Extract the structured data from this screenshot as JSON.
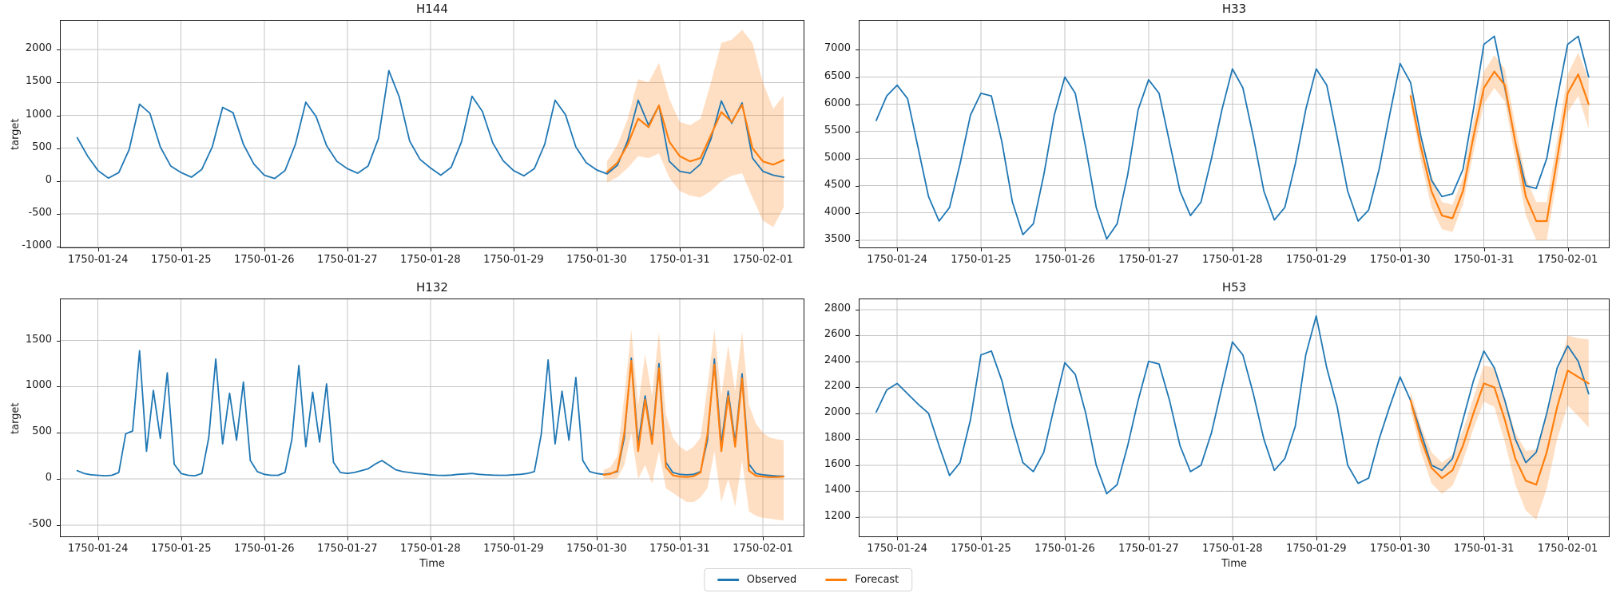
{
  "style": {
    "observed_color": "#1f77b4",
    "forecast_color": "#ff7f0e",
    "band_fill": "rgba(255,127,14,0.25)",
    "grid_color": "#c6c6c6",
    "spine_color": "#1a1a1a",
    "text_color": "#1a1a1a",
    "background": "#ffffff"
  },
  "legend": {
    "items": [
      {
        "label": "Observed",
        "color": "#1f77b4"
      },
      {
        "label": "Forecast",
        "color": "#ff7f0e"
      }
    ]
  },
  "time_axis": {
    "label": "Time",
    "xlim": [
      -11,
      204
    ],
    "tick_hours": [
      0,
      24,
      48,
      72,
      96,
      120,
      144,
      168,
      192
    ],
    "tick_labels": [
      "1750-01-24",
      "1750-01-25",
      "1750-01-26",
      "1750-01-27",
      "1750-01-28",
      "1750-01-29",
      "1750-01-30",
      "1750-01-31",
      "1750-02-01"
    ]
  },
  "chart_data": [
    {
      "type": "line",
      "title": "H144",
      "ylabel": "target",
      "xlabel": "",
      "grid": true,
      "legend_position": "figure-bottom",
      "ylim": [
        -1020,
        2450
      ],
      "y_ticks": [
        -1000,
        -500,
        0,
        500,
        1000,
        1500,
        2000
      ],
      "observed": {
        "t0": -6,
        "step": 3,
        "values": [
          660,
          380,
          160,
          45,
          130,
          480,
          1170,
          1030,
          520,
          230,
          130,
          60,
          180,
          520,
          1120,
          1040,
          560,
          260,
          90,
          40,
          160,
          560,
          1200,
          980,
          540,
          300,
          190,
          120,
          230,
          650,
          1680,
          1280,
          610,
          330,
          200,
          90,
          210,
          600,
          1290,
          1060,
          580,
          310,
          160,
          80,
          190,
          560,
          1230,
          1010,
          520,
          280,
          170,
          110,
          240,
          620,
          1230,
          850,
          1150,
          300,
          150,
          120,
          260,
          640,
          1220,
          880,
          1190,
          350,
          150,
          90,
          60
        ]
      },
      "forecast": {
        "t0": 147,
        "step": 3,
        "values": [
          140,
          280,
          560,
          950,
          820,
          1150,
          600,
          380,
          300,
          350,
          700,
          1050,
          900,
          1160,
          500,
          300,
          250,
          320
        ]
      },
      "band": {
        "t0": 147,
        "step": 3,
        "lower": [
          -20,
          60,
          200,
          380,
          350,
          420,
          50,
          -150,
          -220,
          -250,
          -150,
          0,
          80,
          120,
          -250,
          -600,
          -700,
          -400
        ],
        "upper": [
          300,
          550,
          950,
          1550,
          1500,
          1800,
          1250,
          900,
          850,
          950,
          1500,
          2100,
          2150,
          2300,
          2100,
          1500,
          1100,
          1300
        ]
      }
    },
    {
      "type": "line",
      "title": "H33",
      "ylabel": "",
      "xlabel": "",
      "grid": true,
      "ylim": [
        3350,
        7550
      ],
      "y_ticks": [
        3500,
        4000,
        4500,
        5000,
        5500,
        6000,
        6500,
        7000
      ],
      "observed": {
        "t0": -6,
        "step": 3,
        "values": [
          5700,
          6150,
          6350,
          6100,
          5200,
          4300,
          3850,
          4100,
          4900,
          5800,
          6200,
          6150,
          5300,
          4200,
          3600,
          3800,
          4700,
          5800,
          6500,
          6200,
          5200,
          4100,
          3520,
          3800,
          4700,
          5900,
          6450,
          6200,
          5300,
          4400,
          3950,
          4200,
          5000,
          5900,
          6650,
          6300,
          5400,
          4400,
          3870,
          4100,
          4900,
          5900,
          6650,
          6350,
          5400,
          4400,
          3850,
          4050,
          4800,
          5800,
          6750,
          6400,
          5400,
          4600,
          4300,
          4350,
          4800,
          5900,
          7100,
          7250,
          6300,
          5300,
          4500,
          4450,
          5000,
          6100,
          7100,
          7250,
          6500
        ]
      },
      "forecast": {
        "t0": 147,
        "step": 3,
        "values": [
          6150,
          5200,
          4400,
          3950,
          3900,
          4400,
          5400,
          6300,
          6600,
          6350,
          5300,
          4300,
          3850,
          3850,
          5000,
          6200,
          6550,
          6000
        ]
      },
      "band": {
        "t0": 147,
        "step": 3,
        "lower": [
          6000,
          4950,
          4100,
          3700,
          3650,
          4150,
          5100,
          6000,
          6300,
          6050,
          5000,
          3950,
          3500,
          3500,
          4650,
          5850,
          6150,
          5550
        ],
        "upper": [
          6300,
          5450,
          4700,
          4200,
          4150,
          4650,
          5700,
          6600,
          6900,
          6650,
          5600,
          4650,
          4200,
          4200,
          5350,
          6550,
          6950,
          6450
        ]
      }
    },
    {
      "type": "line",
      "title": "H132",
      "ylabel": "target",
      "xlabel": "Time",
      "grid": true,
      "ylim": [
        -630,
        1955
      ],
      "y_ticks": [
        -500,
        0,
        500,
        1000,
        1500
      ],
      "observed": {
        "t0": -6,
        "step": 2,
        "values": [
          90,
          60,
          45,
          40,
          35,
          40,
          70,
          490,
          520,
          1390,
          300,
          960,
          440,
          1150,
          160,
          60,
          40,
          35,
          60,
          450,
          1300,
          380,
          930,
          420,
          1050,
          200,
          80,
          50,
          40,
          40,
          70,
          430,
          1230,
          350,
          940,
          400,
          1030,
          180,
          70,
          60,
          70,
          90,
          110,
          160,
          200,
          150,
          100,
          80,
          70,
          60,
          55,
          45,
          40,
          38,
          42,
          50,
          55,
          60,
          50,
          45,
          42,
          40,
          40,
          45,
          50,
          60,
          80,
          480,
          1290,
          380,
          950,
          420,
          1100,
          200,
          80,
          60,
          50,
          60,
          80,
          450,
          1310,
          380,
          900,
          420,
          1250,
          180,
          70,
          50,
          45,
          50,
          80,
          420,
          1300,
          380,
          950,
          400,
          1140,
          160,
          60,
          45,
          38,
          32,
          30
        ]
      },
      "forecast": {
        "t0": 146,
        "step": 2,
        "values": [
          45,
          55,
          90,
          500,
          1280,
          300,
          860,
          380,
          1200,
          130,
          40,
          25,
          22,
          30,
          70,
          480,
          1240,
          300,
          900,
          350,
          1090,
          90,
          35,
          25,
          20,
          20,
          25
        ]
      },
      "band": {
        "t0": 146,
        "step": 2,
        "lower": [
          0,
          0,
          10,
          150,
          500,
          0,
          150,
          -50,
          300,
          -100,
          -150,
          -200,
          -250,
          -250,
          -200,
          -100,
          300,
          -250,
          0,
          -300,
          200,
          -350,
          -400,
          -420,
          -430,
          -440,
          -450
        ],
        "upper": [
          100,
          130,
          250,
          900,
          1620,
          800,
          1350,
          900,
          1600,
          700,
          450,
          350,
          300,
          350,
          450,
          1000,
          1620,
          900,
          1450,
          950,
          1600,
          800,
          600,
          500,
          450,
          430,
          420
        ]
      }
    },
    {
      "type": "line",
      "title": "H53",
      "ylabel": "",
      "xlabel": "Time",
      "grid": true,
      "ylim": [
        1045,
        2885
      ],
      "y_ticks": [
        1200,
        1400,
        1600,
        1800,
        2000,
        2200,
        2400,
        2600,
        2800
      ],
      "observed": {
        "t0": -6,
        "step": 3,
        "values": [
          2010,
          2180,
          2230,
          2150,
          2070,
          2000,
          1750,
          1520,
          1620,
          1950,
          2450,
          2480,
          2250,
          1900,
          1620,
          1550,
          1700,
          2050,
          2390,
          2300,
          2000,
          1600,
          1380,
          1450,
          1750,
          2100,
          2400,
          2380,
          2100,
          1750,
          1550,
          1600,
          1850,
          2200,
          2550,
          2450,
          2150,
          1800,
          1560,
          1650,
          1900,
          2450,
          2750,
          2350,
          2050,
          1600,
          1460,
          1500,
          1800,
          2050,
          2280,
          2100,
          1850,
          1600,
          1560,
          1650,
          1950,
          2250,
          2480,
          2350,
          2100,
          1800,
          1620,
          1700,
          2000,
          2350,
          2520,
          2400,
          2150
        ]
      },
      "forecast": {
        "t0": 147,
        "step": 3,
        "values": [
          2100,
          1800,
          1580,
          1500,
          1560,
          1750,
          2000,
          2230,
          2200,
          1950,
          1650,
          1480,
          1450,
          1700,
          2050,
          2330,
          2280,
          2230
        ]
      },
      "band": {
        "t0": 147,
        "step": 3,
        "lower": [
          2030,
          1700,
          1460,
          1380,
          1440,
          1630,
          1880,
          2090,
          2050,
          1780,
          1450,
          1250,
          1180,
          1420,
          1800,
          2060,
          1980,
          1890
        ],
        "upper": [
          2170,
          1900,
          1700,
          1620,
          1680,
          1870,
          2120,
          2370,
          2350,
          2120,
          1850,
          1710,
          1720,
          1980,
          2300,
          2600,
          2580,
          2570
        ]
      }
    }
  ]
}
